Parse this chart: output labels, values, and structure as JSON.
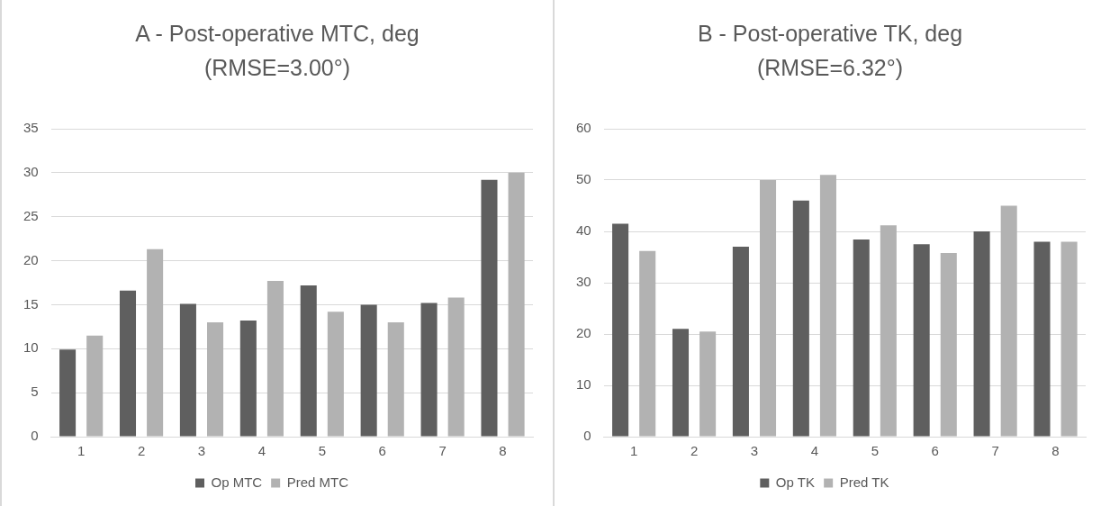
{
  "chart_data": [
    {
      "type": "bar",
      "title": "A - Post-operative MTC, deg (RMSE=3.00°)",
      "categories": [
        "1",
        "2",
        "3",
        "4",
        "5",
        "6",
        "7",
        "8"
      ],
      "series": [
        {
          "name": "Op MTC",
          "color": "#5f5f5f",
          "values": [
            9.9,
            16.6,
            15.1,
            13.2,
            17.2,
            15.0,
            15.2,
            29.2
          ]
        },
        {
          "name": "Pred MTC",
          "color": "#b2b2b2",
          "values": [
            11.5,
            21.3,
            13.0,
            17.7,
            14.2,
            13.0,
            15.8,
            30.0
          ]
        }
      ],
      "ylim": [
        0,
        35
      ],
      "yticks": [
        0,
        5,
        10,
        15,
        20,
        25,
        30,
        35
      ],
      "grid": "y",
      "legend": "bottom"
    },
    {
      "type": "bar",
      "title": "B - Post-operative TK, deg (RMSE=6.32°)",
      "categories": [
        "1",
        "2",
        "3",
        "4",
        "5",
        "6",
        "7",
        "8"
      ],
      "series": [
        {
          "name": "Op TK",
          "color": "#5f5f5f",
          "values": [
            41.5,
            21.0,
            37.0,
            46.0,
            38.4,
            37.5,
            40.0,
            38.0
          ]
        },
        {
          "name": "Pred TK",
          "color": "#b2b2b2",
          "values": [
            36.2,
            20.5,
            50.0,
            51.0,
            41.2,
            35.8,
            45.0,
            38.0
          ]
        }
      ],
      "ylim": [
        0,
        60
      ],
      "yticks": [
        0,
        10,
        20,
        30,
        40,
        50,
        60
      ],
      "grid": "y",
      "legend": "bottom"
    }
  ]
}
